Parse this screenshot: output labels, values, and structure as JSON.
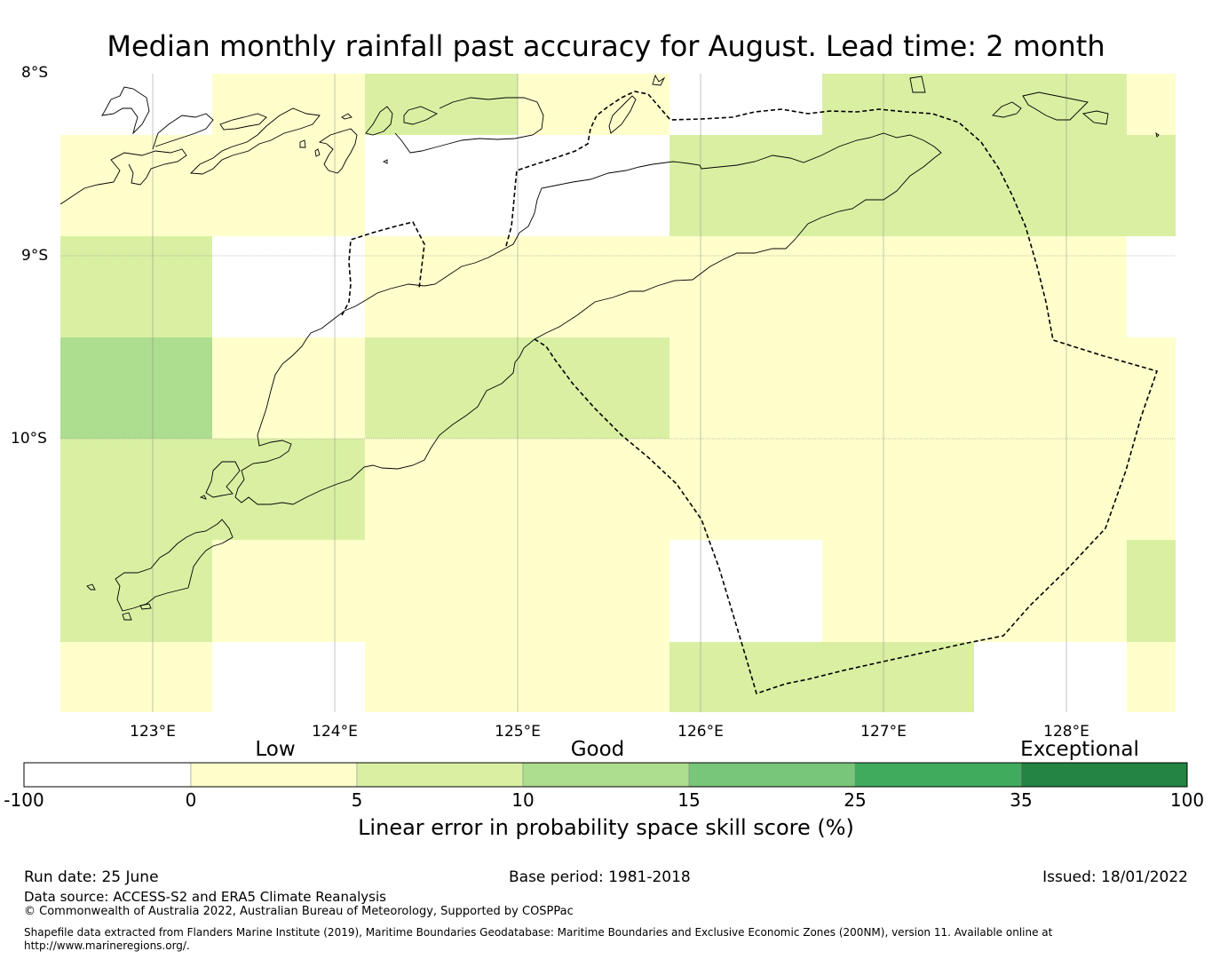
{
  "title": "Median monthly rainfall past accuracy for August. Lead time: 2 month",
  "lat_labels": [
    "8°S",
    "9°S",
    "10°S"
  ],
  "lon_labels": [
    "123°E",
    "124°E",
    "125°E",
    "126°E",
    "127°E",
    "128°E"
  ],
  "colorbar": {
    "category_labels": [
      "Low",
      "Good",
      "Exceptional"
    ],
    "ticks": [
      "-100",
      "0",
      "5",
      "10",
      "15",
      "25",
      "35",
      "100"
    ],
    "colors": [
      "#ffffff",
      "#ffffcc",
      "#d9f0a3",
      "#addd8e",
      "#78c679",
      "#41ab5d",
      "#238443"
    ],
    "label": "Linear error in probability space skill score (%)"
  },
  "grid_colors": {
    "none": "#ffffff",
    "low": "#ffffcc",
    "good1": "#d9f0a3",
    "good2": "#addd8e"
  },
  "footer": {
    "run_date": "Run date: 25 June",
    "base_period": "Base period: 1981-2018",
    "issued": "Issued: 18/01/2022",
    "data_source": "Data source: ACCESS-S2 and ERA5 Climate Reanalysis",
    "copyright": "© Commonwealth of Australia 2022, Australian Bureau of Meteorology, Supported by COSPPac",
    "shapefile_line1": "Shapefile data extracted from Flanders Marine Institute (2019), Maritime Boundaries Geodatabase: Maritime Boundaries and Exclusive Economic Zones (200NM), version 11. Available online at",
    "shapefile_line2": "http://www.marineregions.org/."
  }
}
